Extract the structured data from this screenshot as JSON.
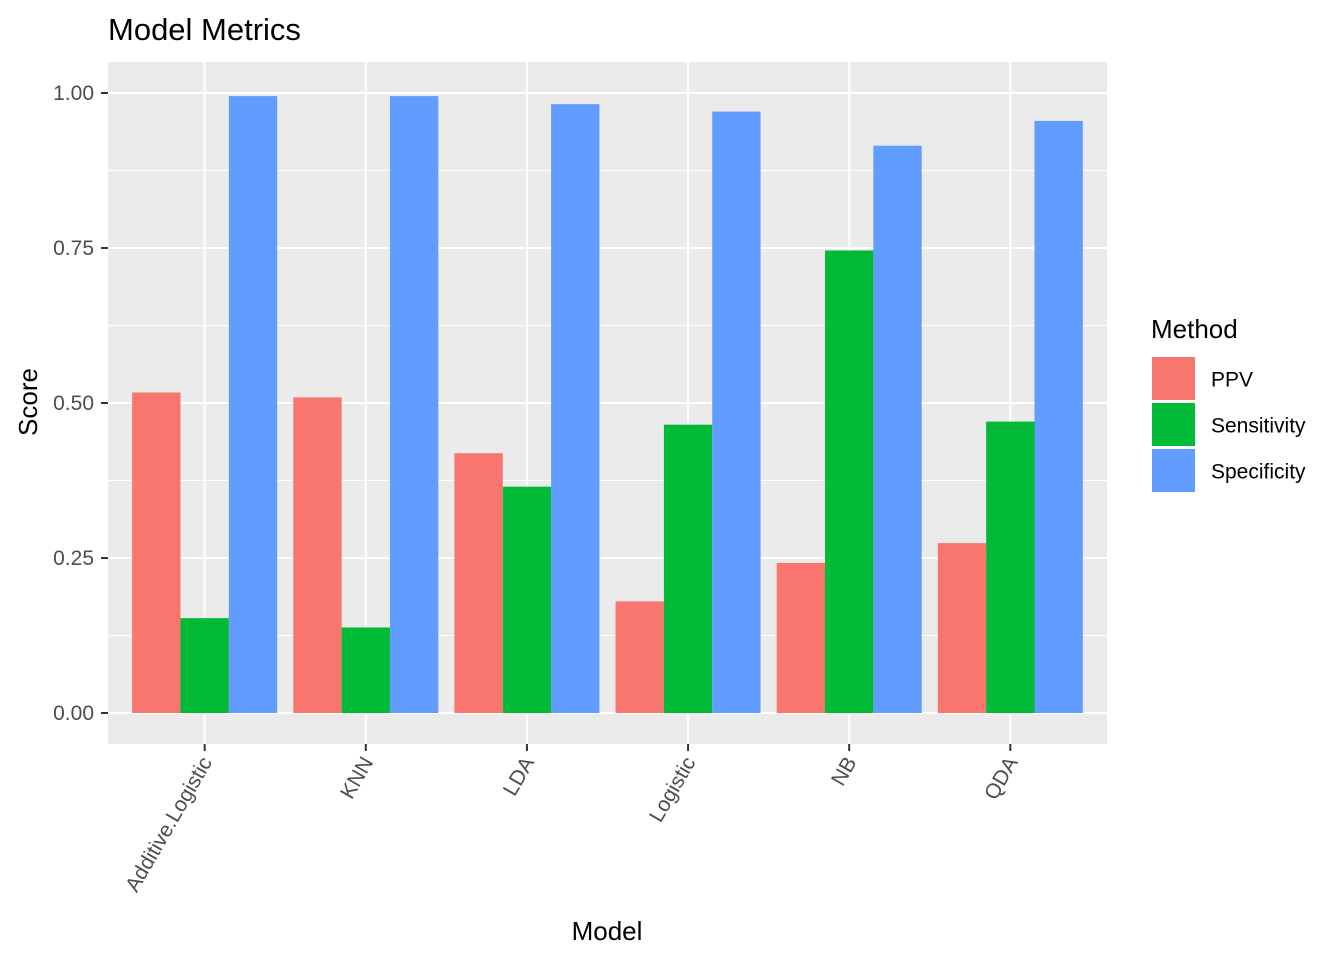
{
  "chart_data": {
    "type": "bar",
    "title": "Model Metrics",
    "xlabel": "Model",
    "ylabel": "Score",
    "categories": [
      "Additive.Logistic",
      "KNN",
      "LDA",
      "Logistic",
      "NB",
      "QDA"
    ],
    "series": [
      {
        "name": "PPV",
        "color": "#F8766D",
        "values": [
          0.517,
          0.509,
          0.419,
          0.18,
          0.242,
          0.274
        ]
      },
      {
        "name": "Sensitivity",
        "color": "#00BA38",
        "values": [
          0.153,
          0.138,
          0.365,
          0.465,
          0.746,
          0.47
        ]
      },
      {
        "name": "Specificity",
        "color": "#619CFF",
        "values": [
          0.995,
          0.995,
          0.982,
          0.97,
          0.915,
          0.955
        ]
      }
    ],
    "ylim": [
      -0.05,
      1.05
    ],
    "yticks": [
      0,
      0.25,
      0.5,
      0.75,
      1.0
    ],
    "ytick_labels": [
      "0.00",
      "0.25",
      "0.50",
      "0.75",
      "1.00"
    ],
    "legend": {
      "title": "Method",
      "position": "right"
    },
    "grid": true,
    "panel_background": "#EBEBEB",
    "x_tick_rotation_deg": 60
  }
}
